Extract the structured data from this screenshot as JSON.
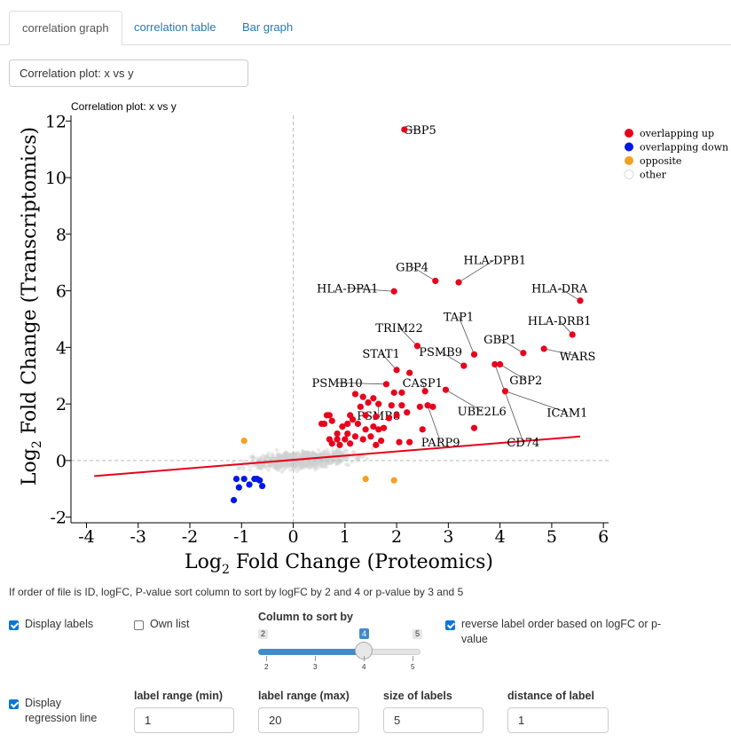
{
  "tabs": [
    {
      "label": "correlation graph"
    },
    {
      "label": "correlation table"
    },
    {
      "label": "Bar graph"
    }
  ],
  "plot_title_input": {
    "value": "Correlation plot: x vs y"
  },
  "chart_data": {
    "type": "scatter",
    "title": "Correlation plot: x vs y",
    "xlabel_prefix": "Log",
    "xlabel_sub": "2",
    "xlabel_suffix": " Fold Change (Proteomics)",
    "ylabel_prefix": "Log",
    "ylabel_sub": "2",
    "ylabel_suffix": " Fold Change (Transcriptomics)",
    "xlim": [
      -4.3,
      6.1
    ],
    "ylim": [
      -2.2,
      12.2
    ],
    "xticks": [
      -4,
      -3,
      -2,
      -1,
      0,
      1,
      2,
      3,
      4,
      5,
      6
    ],
    "yticks": [
      -2,
      0,
      2,
      4,
      6,
      8,
      10,
      12
    ],
    "grid": false,
    "legend_position": "right",
    "colors": {
      "up": "#e8001c",
      "down": "#0018e8",
      "opposite": "#f5a021",
      "other": "#d0d0d0",
      "regression": "#e8001c",
      "zero_line": "#bbbbbb"
    },
    "legend": [
      {
        "name": "overlapping up",
        "color": "#e8001c"
      },
      {
        "name": "overlapping down",
        "color": "#0018e8"
      },
      {
        "name": "opposite",
        "color": "#f5a021"
      },
      {
        "name": "other",
        "color": "#ffffff"
      }
    ],
    "regression_line": {
      "x": [
        -3.85,
        5.55
      ],
      "y": [
        -0.55,
        0.85
      ]
    },
    "series": [
      {
        "name": "overlapping up",
        "points": [
          [
            2.15,
            11.7
          ],
          [
            1.95,
            5.98
          ],
          [
            2.75,
            6.35
          ],
          [
            3.2,
            6.3
          ],
          [
            5.55,
            5.65
          ],
          [
            5.4,
            4.45
          ],
          [
            4.85,
            3.95
          ],
          [
            4.45,
            3.8
          ],
          [
            3.9,
            3.4
          ],
          [
            4.0,
            3.4
          ],
          [
            3.5,
            3.75
          ],
          [
            3.3,
            3.35
          ],
          [
            2.4,
            4.05
          ],
          [
            4.1,
            2.45
          ],
          [
            2.95,
            2.5
          ],
          [
            2.0,
            3.2
          ],
          [
            2.25,
            3.1
          ],
          [
            1.8,
            2.7
          ],
          [
            1.2,
            2.35
          ],
          [
            1.35,
            2.25
          ],
          [
            1.45,
            2.05
          ],
          [
            1.65,
            2.0
          ],
          [
            1.95,
            2.4
          ],
          [
            2.1,
            2.4
          ],
          [
            2.55,
            2.45
          ],
          [
            2.6,
            1.95
          ],
          [
            2.7,
            1.9
          ],
          [
            2.45,
            1.9
          ],
          [
            2.1,
            1.95
          ],
          [
            1.9,
            1.95
          ],
          [
            2.2,
            1.7
          ],
          [
            1.85,
            1.5
          ],
          [
            1.6,
            1.55
          ],
          [
            1.4,
            1.6
          ],
          [
            1.1,
            1.6
          ],
          [
            0.7,
            1.6
          ],
          [
            0.75,
            1.4
          ],
          [
            0.6,
            1.3
          ],
          [
            0.55,
            1.3
          ],
          [
            0.65,
            1.6
          ],
          [
            1.05,
            1.3
          ],
          [
            1.25,
            1.3
          ],
          [
            1.4,
            1.1
          ],
          [
            1.55,
            1.2
          ],
          [
            1.65,
            1.1
          ],
          [
            1.75,
            1.15
          ],
          [
            0.95,
            1.2
          ],
          [
            1.05,
            0.95
          ],
          [
            1.2,
            0.85
          ],
          [
            1.0,
            0.75
          ],
          [
            1.1,
            0.6
          ],
          [
            0.9,
            0.55
          ],
          [
            0.85,
            0.75
          ],
          [
            0.7,
            0.75
          ],
          [
            0.75,
            0.6
          ],
          [
            1.35,
            0.75
          ],
          [
            1.5,
            0.85
          ],
          [
            1.7,
            0.7
          ],
          [
            1.6,
            0.55
          ],
          [
            2.05,
            0.65
          ],
          [
            2.5,
            1.1
          ],
          [
            3.5,
            1.15
          ],
          [
            2.25,
            0.65
          ],
          [
            1.15,
            1.45
          ],
          [
            2.0,
            1.6
          ],
          [
            0.85,
            0.95
          ],
          [
            1.3,
            1.9
          ],
          [
            1.55,
            2.2
          ]
        ]
      },
      {
        "name": "overlapping down",
        "points": [
          [
            -1.15,
            -1.4
          ],
          [
            -1.1,
            -0.65
          ],
          [
            -0.95,
            -0.65
          ],
          [
            -0.75,
            -0.65
          ],
          [
            -0.65,
            -0.7
          ],
          [
            -1.05,
            -0.95
          ],
          [
            -0.6,
            -0.9
          ],
          [
            -0.85,
            -0.85
          ],
          [
            -0.7,
            -0.65
          ]
        ]
      },
      {
        "name": "opposite",
        "points": [
          [
            -0.95,
            0.7
          ],
          [
            1.4,
            -0.65
          ],
          [
            1.95,
            -0.7
          ]
        ]
      }
    ],
    "labels": [
      {
        "text": "GBP5",
        "x": 2.15,
        "y": 11.7,
        "tx": 2.45,
        "ty": 11.7
      },
      {
        "text": "GBP4",
        "x": 2.75,
        "y": 6.35,
        "tx": 2.3,
        "ty": 6.85
      },
      {
        "text": "HLA-DPB1",
        "x": 3.2,
        "y": 6.3,
        "tx": 3.9,
        "ty": 7.1
      },
      {
        "text": "HLA-DPA1",
        "x": 1.95,
        "y": 5.98,
        "tx": 1.05,
        "ty": 6.1
      },
      {
        "text": "HLA-DRA",
        "x": 5.55,
        "y": 5.65,
        "tx": 5.15,
        "ty": 6.1
      },
      {
        "text": "TAP1",
        "x": 3.5,
        "y": 3.75,
        "tx": 3.2,
        "ty": 5.1
      },
      {
        "text": "TRIM22",
        "x": 2.4,
        "y": 4.05,
        "tx": 2.05,
        "ty": 4.7
      },
      {
        "text": "HLA-DRB1",
        "x": 5.4,
        "y": 4.45,
        "tx": 5.15,
        "ty": 4.95
      },
      {
        "text": "GBP1",
        "x": 4.45,
        "y": 3.8,
        "tx": 4.0,
        "ty": 4.3
      },
      {
        "text": "WARS",
        "x": 4.85,
        "y": 3.95,
        "tx": 5.5,
        "ty": 3.7
      },
      {
        "text": "STAT1",
        "x": 2.0,
        "y": 3.2,
        "tx": 1.7,
        "ty": 3.8
      },
      {
        "text": "PSMB9",
        "x": 3.3,
        "y": 3.35,
        "tx": 2.85,
        "ty": 3.85
      },
      {
        "text": "GBP2",
        "x": 4.0,
        "y": 3.4,
        "tx": 4.5,
        "ty": 2.85
      },
      {
        "text": "PSMB10",
        "x": 1.8,
        "y": 2.7,
        "tx": 0.85,
        "ty": 2.75
      },
      {
        "text": "CASP1",
        "x": 2.55,
        "y": 2.45,
        "tx": 2.5,
        "ty": 2.75
      },
      {
        "text": "ICAM1",
        "x": 4.1,
        "y": 2.45,
        "tx": 5.3,
        "ty": 1.7
      },
      {
        "text": "UBE2L6",
        "x": 2.95,
        "y": 2.5,
        "tx": 3.65,
        "ty": 1.75
      },
      {
        "text": "PSMB8",
        "x": 1.65,
        "y": 2.0,
        "tx": 1.65,
        "ty": 1.6
      },
      {
        "text": "PARP9",
        "x": 2.6,
        "y": 1.95,
        "tx": 2.85,
        "ty": 0.65
      },
      {
        "text": "CD74",
        "x": 3.9,
        "y": 3.4,
        "tx": 4.45,
        "ty": 0.65
      }
    ]
  },
  "note": "If order of file is ID, logFC, P-value sort column to sort by logFC by 2 and 4 or p-value by 3 and 5",
  "controls": {
    "display_labels": {
      "label": "Display labels",
      "checked": true
    },
    "own_list": {
      "label": "Own list",
      "checked": false
    },
    "sort_slider": {
      "title": "Column to sort by",
      "min": 2,
      "max": 5,
      "value": 4,
      "ticks": [
        "2",
        "3",
        "4",
        "5"
      ],
      "min_label": "2",
      "max_label": "5",
      "value_label": "4"
    },
    "reverse_order": {
      "label": "reverse label order based on logFC or p-value",
      "checked": true
    },
    "display_regression": {
      "label": "Display regression line",
      "checked": true
    },
    "label_range_min": {
      "label": "label range (min)",
      "value": "1"
    },
    "label_range_max": {
      "label": "label range (max)",
      "value": "20"
    },
    "size_of_labels": {
      "label": "size of labels",
      "value": "5"
    },
    "distance_of_label": {
      "label": "distance of label",
      "value": "1"
    }
  }
}
